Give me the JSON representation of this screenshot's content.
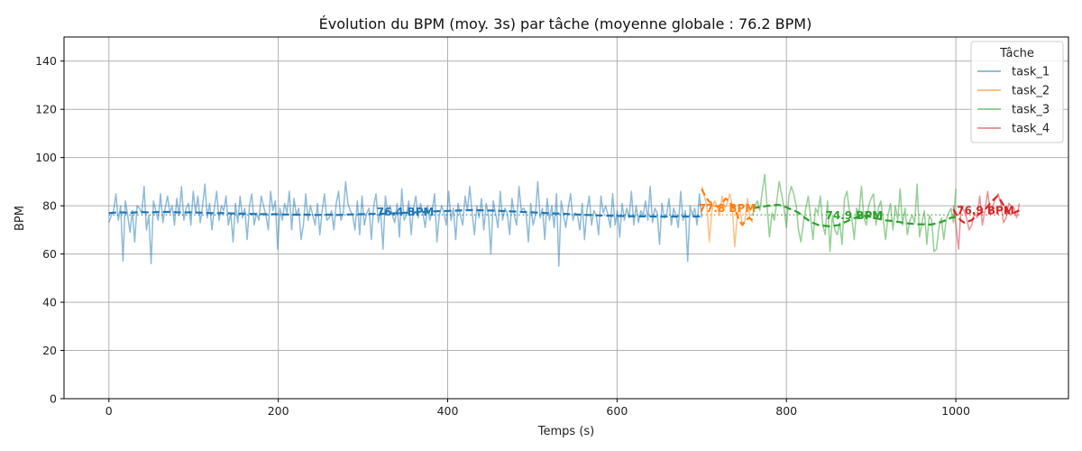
{
  "chart_data": {
    "type": "line",
    "title": "Évolution du BPM (moy. 3s) par tâche (moyenne globale : 76.2 BPM)",
    "xlabel": "Temps (s)",
    "ylabel": "BPM",
    "xlim": [
      -53,
      1133
    ],
    "ylim": [
      0,
      150
    ],
    "xticks": [
      0,
      200,
      400,
      600,
      800,
      1000
    ],
    "yticks": [
      0,
      20,
      40,
      60,
      80,
      100,
      120,
      140
    ],
    "grid": true,
    "legend": {
      "title": "Tâche",
      "placement": "top-right"
    },
    "global_mean": 76.2,
    "series": [
      {
        "name": "task_1",
        "color": "#1f77b4",
        "x_range": [
          0,
          700
        ],
        "raw_y": [
          73,
          76,
          78,
          85,
          74,
          80,
          57,
          82,
          76,
          69,
          78,
          65,
          80,
          79,
          77,
          88,
          70,
          76,
          56,
          82,
          78,
          74,
          85,
          73,
          79,
          84,
          77,
          80,
          72,
          83,
          76,
          88,
          74,
          79,
          81,
          72,
          86,
          77,
          84,
          73,
          80,
          89,
          75,
          81,
          70,
          79,
          86,
          74,
          80,
          78,
          84,
          72,
          77,
          65,
          81,
          73,
          84,
          75,
          79,
          66,
          80,
          85,
          72,
          77,
          74,
          84,
          80,
          76,
          70,
          86,
          78,
          82,
          62,
          79,
          74,
          81,
          77,
          86,
          70,
          83,
          76,
          79,
          66,
          72,
          85,
          74,
          80,
          76,
          72,
          81,
          68,
          78,
          85,
          74,
          75,
          78,
          70,
          81,
          86,
          74,
          77,
          90,
          81,
          78,
          76,
          70,
          82,
          68,
          84,
          72,
          77,
          79,
          66,
          80,
          85,
          73,
          78,
          62,
          84,
          77,
          80,
          76,
          73,
          81,
          67,
          87,
          74,
          76,
          82,
          68,
          79,
          84,
          75,
          81,
          77,
          71,
          80,
          74,
          78,
          85,
          65,
          76,
          80,
          77,
          72,
          86,
          74,
          79,
          66,
          81,
          76,
          72,
          84,
          78,
          88,
          77,
          68,
          80,
          75,
          83,
          70,
          81,
          76,
          60,
          82,
          77,
          71,
          86,
          74,
          79,
          77,
          68,
          83,
          76,
          72,
          88,
          78,
          79,
          77,
          65,
          81,
          72,
          76,
          90,
          75,
          79,
          66,
          83,
          74,
          80,
          71,
          85,
          55,
          82,
          76,
          71,
          79,
          85,
          74,
          77,
          76,
          70,
          81,
          66,
          78,
          84,
          72,
          78,
          76,
          68,
          84,
          77,
          80,
          76,
          71,
          85,
          72,
          78,
          67,
          81,
          74,
          79,
          75,
          86,
          72,
          80,
          73,
          78,
          76,
          82,
          74,
          88,
          73,
          79,
          77,
          64,
          81,
          75,
          76,
          83,
          72,
          79,
          76,
          71,
          86,
          74,
          78,
          57,
          80,
          76,
          79,
          72,
          85,
          75
        ],
        "rolling_y": [
          77,
          77.3,
          77.1,
          77.4,
          77.2,
          77.5,
          77.4,
          77.2,
          77.3,
          77.1,
          76.9,
          77,
          76.8,
          76.7,
          76.6,
          76.5,
          76.5,
          76.4,
          76.3,
          76.3,
          76.2,
          76.3,
          76.2,
          76.4,
          76.5,
          76.6,
          76.7,
          76.8,
          77,
          77.2,
          77.4,
          77.6,
          77.8,
          77.9,
          78.1,
          78.2,
          78.1,
          78,
          77.8,
          77.6,
          77.4,
          77.2,
          77,
          76.8,
          76.6,
          76.4,
          76.2,
          76,
          75.9,
          75.8,
          75.7,
          75.6,
          75.6,
          75.5,
          75.5,
          75.6,
          75.5,
          75.6
        ],
        "mean": 76.4,
        "mean_label": "76.4 BPM",
        "label_x": 350
      },
      {
        "name": "task_2",
        "color": "#ff7f0e",
        "x_range": [
          700,
          760
        ],
        "raw_y": [
          88,
          84,
          80,
          65,
          78,
          82,
          80,
          76,
          84,
          79,
          81,
          85,
          80,
          63,
          76,
          79,
          72,
          74,
          83,
          75,
          73
        ],
        "rolling_y": [
          87,
          84,
          82,
          81,
          80,
          79.5,
          81,
          83,
          82,
          80,
          78,
          74,
          72,
          74,
          75,
          74
        ],
        "mean": 77.8,
        "mean_label": "77.8 BPM",
        "label_x": 730
      },
      {
        "name": "task_3",
        "color": "#2ca02c",
        "x_range": [
          760,
          1000
        ],
        "raw_y": [
          76,
          80,
          82,
          78,
          86,
          93,
          80,
          67,
          77,
          74,
          82,
          90,
          85,
          79,
          71,
          84,
          88,
          85,
          80,
          70,
          65,
          73,
          79,
          84,
          75,
          66,
          79,
          77,
          84,
          72,
          68,
          82,
          61,
          76,
          70,
          68,
          73,
          64,
          83,
          86,
          78,
          75,
          66,
          79,
          77,
          88,
          75,
          72,
          80,
          83,
          85,
          72,
          79,
          82,
          74,
          66,
          76,
          81,
          70,
          80,
          74,
          87,
          72,
          79,
          68,
          74,
          76,
          73,
          89,
          67,
          73,
          78,
          64,
          76,
          74,
          61,
          62,
          71,
          75,
          66,
          74,
          77,
          79,
          73,
          87
        ],
        "rolling_y": [
          79,
          79.3,
          79.6,
          80,
          80.2,
          80.4,
          80,
          79,
          78.2,
          77.2,
          75.5,
          74,
          72.8,
          72,
          71.8,
          71.5,
          71.7,
          72,
          73,
          74,
          74.9,
          75.5,
          75.8,
          75.5,
          75.1,
          74.5,
          74,
          73.8,
          73.5,
          73.2,
          72.8,
          72.6,
          72.4,
          72.3,
          72.3,
          72.2,
          72.6,
          73.2,
          74,
          75,
          75.5
        ],
        "mean": 74.9,
        "mean_label": "74.9 BPM",
        "label_x": 880
      },
      {
        "name": "task_4",
        "color": "#d62728",
        "x_range": [
          997,
          1075
        ],
        "raw_y": [
          80,
          72,
          62,
          80,
          78,
          75,
          70,
          72,
          77,
          75,
          84,
          72,
          78,
          86,
          77,
          80,
          83,
          85,
          81,
          73,
          75,
          81,
          80,
          79,
          75,
          81
        ],
        "rolling_y": [
          78.5,
          76,
          74,
          73,
          73.5,
          74,
          75.5,
          76.5,
          77.5,
          79,
          81,
          82.5,
          84,
          82,
          79.5,
          77,
          76.5,
          77.5,
          78
        ],
        "mean": 76.9,
        "mean_label": "76.9 BPM",
        "label_x": 1035
      }
    ]
  }
}
